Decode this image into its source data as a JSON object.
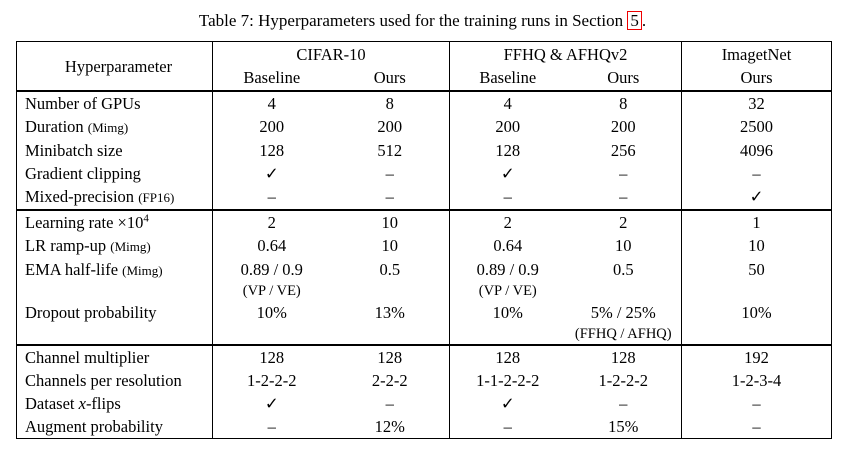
{
  "colors": {
    "text": "#000000",
    "border": "#000000",
    "background": "#ffffff",
    "section_link_box": "#ee0000"
  },
  "title": {
    "prefix": "Table 7: Hyperparameters used for the training runs in Section ",
    "link": "5",
    "suffix": "."
  },
  "table": {
    "header": {
      "hyperparameter": "Hyperparameter",
      "groups": [
        {
          "label": "CIFAR-10",
          "cols": [
            "Baseline",
            "Ours"
          ]
        },
        {
          "label": "FFHQ & AFHQv2",
          "cols": [
            "Baseline",
            "Ours"
          ]
        },
        {
          "label": "ImagetNet",
          "cols": [
            "Ours"
          ]
        }
      ]
    },
    "sections": [
      {
        "rows": [
          {
            "label": [
              {
                "t": "Number of GPUs"
              }
            ],
            "cells": [
              {
                "v": "4"
              },
              {
                "v": "8"
              },
              {
                "v": "4"
              },
              {
                "v": "8"
              },
              {
                "v": "32"
              }
            ]
          },
          {
            "label": [
              {
                "t": "Duration "
              },
              {
                "t": "(Mimg)",
                "style": "small"
              }
            ],
            "cells": [
              {
                "v": "200"
              },
              {
                "v": "200"
              },
              {
                "v": "200"
              },
              {
                "v": "200"
              },
              {
                "v": "2500"
              }
            ]
          },
          {
            "label": [
              {
                "t": "Minibatch size"
              }
            ],
            "cells": [
              {
                "v": "128"
              },
              {
                "v": "512"
              },
              {
                "v": "128"
              },
              {
                "v": "256"
              },
              {
                "v": "4096"
              }
            ]
          },
          {
            "label": [
              {
                "t": "Gradient clipping"
              }
            ],
            "cells": [
              {
                "v": "✓"
              },
              {
                "v": "–"
              },
              {
                "v": "✓"
              },
              {
                "v": "–"
              },
              {
                "v": "–"
              }
            ]
          },
          {
            "label": [
              {
                "t": "Mixed-precision "
              },
              {
                "t": "(FP16)",
                "style": "small"
              }
            ],
            "cells": [
              {
                "v": "–"
              },
              {
                "v": "–"
              },
              {
                "v": "–"
              },
              {
                "v": "–"
              },
              {
                "v": "✓"
              }
            ]
          }
        ]
      },
      {
        "rows": [
          {
            "label": [
              {
                "t": "Learning rate ×10"
              },
              {
                "t": "4",
                "style": "sup"
              }
            ],
            "cells": [
              {
                "v": "2"
              },
              {
                "v": "10"
              },
              {
                "v": "2"
              },
              {
                "v": "2"
              },
              {
                "v": "1"
              }
            ]
          },
          {
            "label": [
              {
                "t": "LR ramp-up "
              },
              {
                "t": "(Mimg)",
                "style": "small"
              }
            ],
            "cells": [
              {
                "v": "0.64"
              },
              {
                "v": "10"
              },
              {
                "v": "0.64"
              },
              {
                "v": "10"
              },
              {
                "v": "10"
              }
            ]
          },
          {
            "label": [
              {
                "t": "EMA half-life "
              },
              {
                "t": "(Mimg)",
                "style": "small"
              }
            ],
            "cells": [
              {
                "v": "0.89 / 0.9",
                "sub": "(VP / VE)"
              },
              {
                "v": "0.5"
              },
              {
                "v": "0.89 / 0.9",
                "sub": "(VP / VE)"
              },
              {
                "v": "0.5"
              },
              {
                "v": "50"
              }
            ]
          },
          {
            "label": [
              {
                "t": "Dropout probability"
              }
            ],
            "cells": [
              {
                "v": "10%"
              },
              {
                "v": "13%"
              },
              {
                "v": "10%"
              },
              {
                "v": "5% / 25%",
                "sub": "(FFHQ / AFHQ)"
              },
              {
                "v": "10%"
              }
            ]
          }
        ]
      },
      {
        "rows": [
          {
            "label": [
              {
                "t": "Channel multiplier"
              }
            ],
            "cells": [
              {
                "v": "128"
              },
              {
                "v": "128"
              },
              {
                "v": "128"
              },
              {
                "v": "128"
              },
              {
                "v": "192"
              }
            ]
          },
          {
            "label": [
              {
                "t": "Channels per resolution"
              }
            ],
            "cells": [
              {
                "v": "1-2-2-2"
              },
              {
                "v": "2-2-2"
              },
              {
                "v": "1-1-2-2-2"
              },
              {
                "v": "1-2-2-2"
              },
              {
                "v": "1-2-3-4"
              }
            ]
          },
          {
            "label": [
              {
                "t": "Dataset "
              },
              {
                "t": "x",
                "style": "italic"
              },
              {
                "t": "-flips"
              }
            ],
            "cells": [
              {
                "v": "✓"
              },
              {
                "v": "–"
              },
              {
                "v": "✓"
              },
              {
                "v": "–"
              },
              {
                "v": "–"
              }
            ]
          },
          {
            "label": [
              {
                "t": "Augment probability"
              }
            ],
            "cells": [
              {
                "v": "–"
              },
              {
                "v": "12%"
              },
              {
                "v": "–"
              },
              {
                "v": "15%"
              },
              {
                "v": "–"
              }
            ]
          }
        ]
      }
    ]
  }
}
